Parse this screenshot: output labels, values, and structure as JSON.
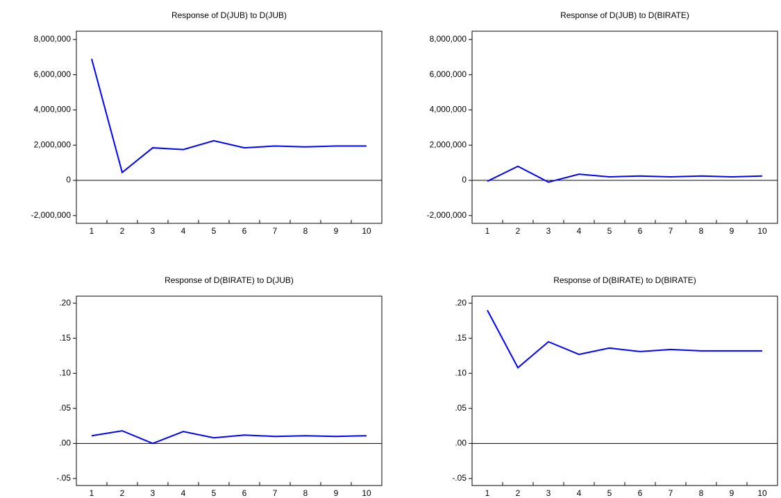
{
  "chart_data": [
    {
      "type": "line",
      "title": "Response of D(JUB) to D(JUB)",
      "categories": [
        "1",
        "2",
        "3",
        "4",
        "5",
        "6",
        "7",
        "8",
        "9",
        "10"
      ],
      "series": [
        {
          "color": "#0000ff",
          "values": [
            6900000,
            450000,
            1850000,
            1750000,
            2250000,
            1850000,
            1950000,
            1900000,
            1950000,
            1950000
          ]
        }
      ],
      "ylim": [
        -2440000,
        8470000
      ],
      "yticks": [
        {
          "value": -2000000,
          "label": "-2,000,000"
        },
        0,
        {
          "value": 2000000,
          "label": "2,000,000"
        },
        {
          "value": 4000000,
          "label": "4,000,000"
        },
        {
          "value": 6000000,
          "label": "6,000,000"
        },
        {
          "value": 8000000,
          "label": "8,000,000"
        }
      ]
    },
    {
      "type": "line",
      "title": "Response of D(JUB) to D(BIRATE)",
      "categories": [
        "1",
        "2",
        "3",
        "4",
        "5",
        "6",
        "7",
        "8",
        "9",
        "10"
      ],
      "series": [
        {
          "color": "#0000ff",
          "values": [
            -50000,
            800000,
            -100000,
            350000,
            200000,
            250000,
            200000,
            250000,
            200000,
            250000
          ]
        }
      ],
      "ylim": [
        -2440000,
        8470000
      ],
      "yticks": [
        {
          "value": -2000000,
          "label": "-2,000,000"
        },
        0,
        {
          "value": 2000000,
          "label": "2,000,000"
        },
        {
          "value": 4000000,
          "label": "4,000,000"
        },
        {
          "value": 6000000,
          "label": "6,000,000"
        },
        {
          "value": 8000000,
          "label": "8,000,000"
        }
      ]
    },
    {
      "type": "line",
      "title": "Response of D(BIRATE) to D(JUB)",
      "categories": [
        "1",
        "2",
        "3",
        "4",
        "5",
        "6",
        "7",
        "8",
        "9",
        "10"
      ],
      "series": [
        {
          "color": "#0000ff",
          "values": [
            0.011,
            0.018,
            0.0,
            0.017,
            0.008,
            0.012,
            0.01,
            0.011,
            0.01,
            0.011
          ]
        }
      ],
      "ylim": [
        -0.06,
        0.21
      ],
      "yticks": [
        {
          "value": -0.05,
          "label": "-.05"
        },
        {
          "value": 0,
          "label": ".00"
        },
        {
          "value": 0.05,
          "label": ".05"
        },
        {
          "value": 0.1,
          "label": ".10"
        },
        {
          "value": 0.15,
          "label": ".15"
        },
        {
          "value": 0.2,
          "label": ".20"
        }
      ]
    },
    {
      "type": "line",
      "title": "Response of D(BIRATE) to D(BIRATE)",
      "categories": [
        "1",
        "2",
        "3",
        "4",
        "5",
        "6",
        "7",
        "8",
        "9",
        "10"
      ],
      "series": [
        {
          "color": "#0000ff",
          "values": [
            0.19,
            0.108,
            0.145,
            0.127,
            0.136,
            0.131,
            0.134,
            0.132,
            0.132,
            0.132
          ]
        }
      ],
      "ylim": [
        -0.06,
        0.21
      ],
      "yticks": [
        {
          "value": -0.05,
          "label": "-.05"
        },
        {
          "value": 0,
          "label": ".00"
        },
        {
          "value": 0.05,
          "label": ".05"
        },
        {
          "value": 0.1,
          "label": ".10"
        },
        {
          "value": 0.15,
          "label": ".15"
        },
        {
          "value": 0.2,
          "label": ".20"
        }
      ]
    }
  ]
}
